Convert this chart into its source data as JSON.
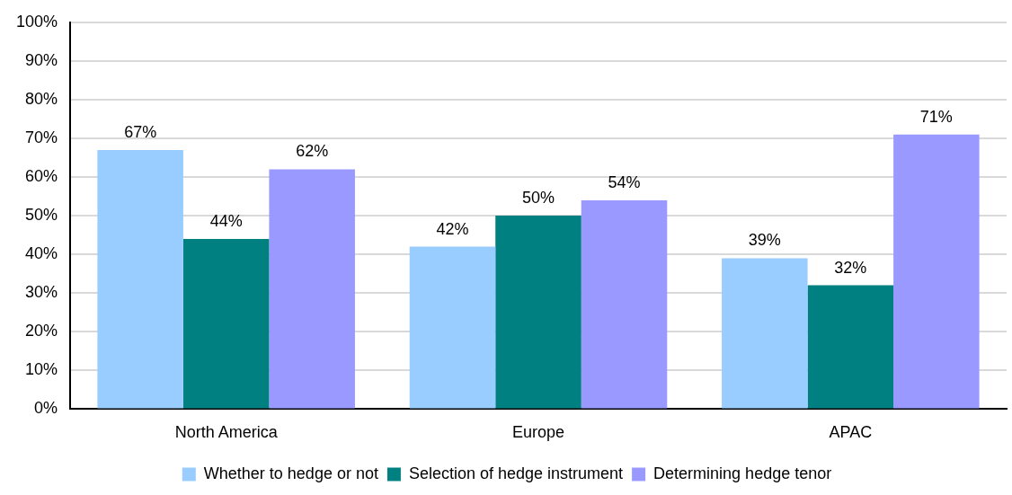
{
  "chart_data": {
    "type": "bar",
    "categories": [
      "North America",
      "Europe",
      "APAC"
    ],
    "series": [
      {
        "name": "Whether to hedge or not",
        "color": "#99ccff",
        "values": [
          67,
          42,
          39
        ],
        "value_labels": [
          "67%",
          "42%",
          "39%"
        ]
      },
      {
        "name": "Selection of hedge instrument",
        "color": "#008080",
        "values": [
          44,
          50,
          32
        ],
        "value_labels": [
          "44%",
          "50%",
          "32%"
        ]
      },
      {
        "name": "Determining hedge tenor",
        "color": "#9999ff",
        "values": [
          62,
          54,
          71
        ],
        "value_labels": [
          "62%",
          "54%",
          "71%"
        ]
      }
    ],
    "ylim": [
      0,
      100
    ],
    "yticks": [
      {
        "value": 0,
        "label": "0%"
      },
      {
        "value": 10,
        "label": "10%"
      },
      {
        "value": 20,
        "label": "20%"
      },
      {
        "value": 30,
        "label": "30%"
      },
      {
        "value": 40,
        "label": "40%"
      },
      {
        "value": 50,
        "label": "50%"
      },
      {
        "value": 60,
        "label": "60%"
      },
      {
        "value": 70,
        "label": "70%"
      },
      {
        "value": 80,
        "label": "80%"
      },
      {
        "value": 90,
        "label": "90%"
      },
      {
        "value": 100,
        "label": "100%"
      }
    ],
    "grid": "y",
    "legend": "bottom"
  }
}
